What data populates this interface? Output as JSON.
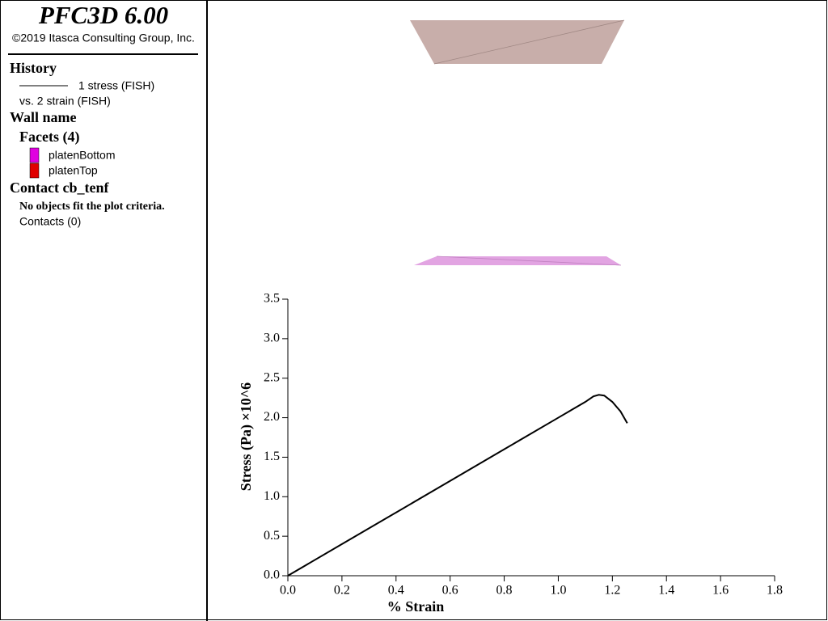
{
  "sidebar": {
    "title": "PFC3D 6.00",
    "copyright": "©2019 Itasca Consulting Group, Inc.",
    "history_heading": "History",
    "history_vs": "vs. 2 strain (FISH)",
    "wall_heading": "Wall name",
    "facets_heading": "Facets (4)",
    "facets": [
      {
        "name": "platenBottom",
        "color": "#e000e0"
      },
      {
        "name": "platenTop",
        "color": "#e00000"
      }
    ],
    "contact_heading": "Contact cb_tenf",
    "contact_note": "No objects fit the plot criteria.",
    "contacts": "Contacts (0)"
  },
  "chart_data": {
    "type": "line",
    "xlabel": "% Strain",
    "ylabel": "Stress (Pa) ×10^6",
    "x": [
      0,
      0.2,
      0.4,
      0.6,
      0.8,
      1.0,
      1.05,
      1.1,
      1.13,
      1.15,
      1.17,
      1.2,
      1.23,
      1.255
    ],
    "series": [
      {
        "name": "1 stress (FISH)",
        "color": "#000000",
        "values": [
          0,
          0.4,
          0.8,
          1.2,
          1.6,
          2.0,
          2.1,
          2.2,
          2.27,
          2.29,
          2.28,
          2.2,
          2.08,
          1.93
        ]
      }
    ],
    "xlim": [
      0,
      1.8
    ],
    "ylim": [
      0,
      3.5
    ],
    "xticks": [
      {
        "value": 0,
        "label": "0.0"
      },
      {
        "value": 0.2,
        "label": "0.2"
      },
      {
        "value": 0.4,
        "label": "0.4"
      },
      {
        "value": 0.6,
        "label": "0.6"
      },
      {
        "value": 0.8,
        "label": "0.8"
      },
      {
        "value": 1,
        "label": "1.0"
      },
      {
        "value": 1.2,
        "label": "1.2"
      },
      {
        "value": 1.4,
        "label": "1.4"
      },
      {
        "value": 1.6,
        "label": "1.6"
      },
      {
        "value": 1.8,
        "label": "1.8"
      }
    ],
    "yticks": [
      {
        "value": 0,
        "label": "0.0"
      },
      0.5,
      {
        "value": 1,
        "label": "1.0"
      },
      1.5,
      {
        "value": 2,
        "label": "2.0"
      },
      2.5,
      {
        "value": 3,
        "label": "3.0"
      },
      3.5
    ]
  }
}
